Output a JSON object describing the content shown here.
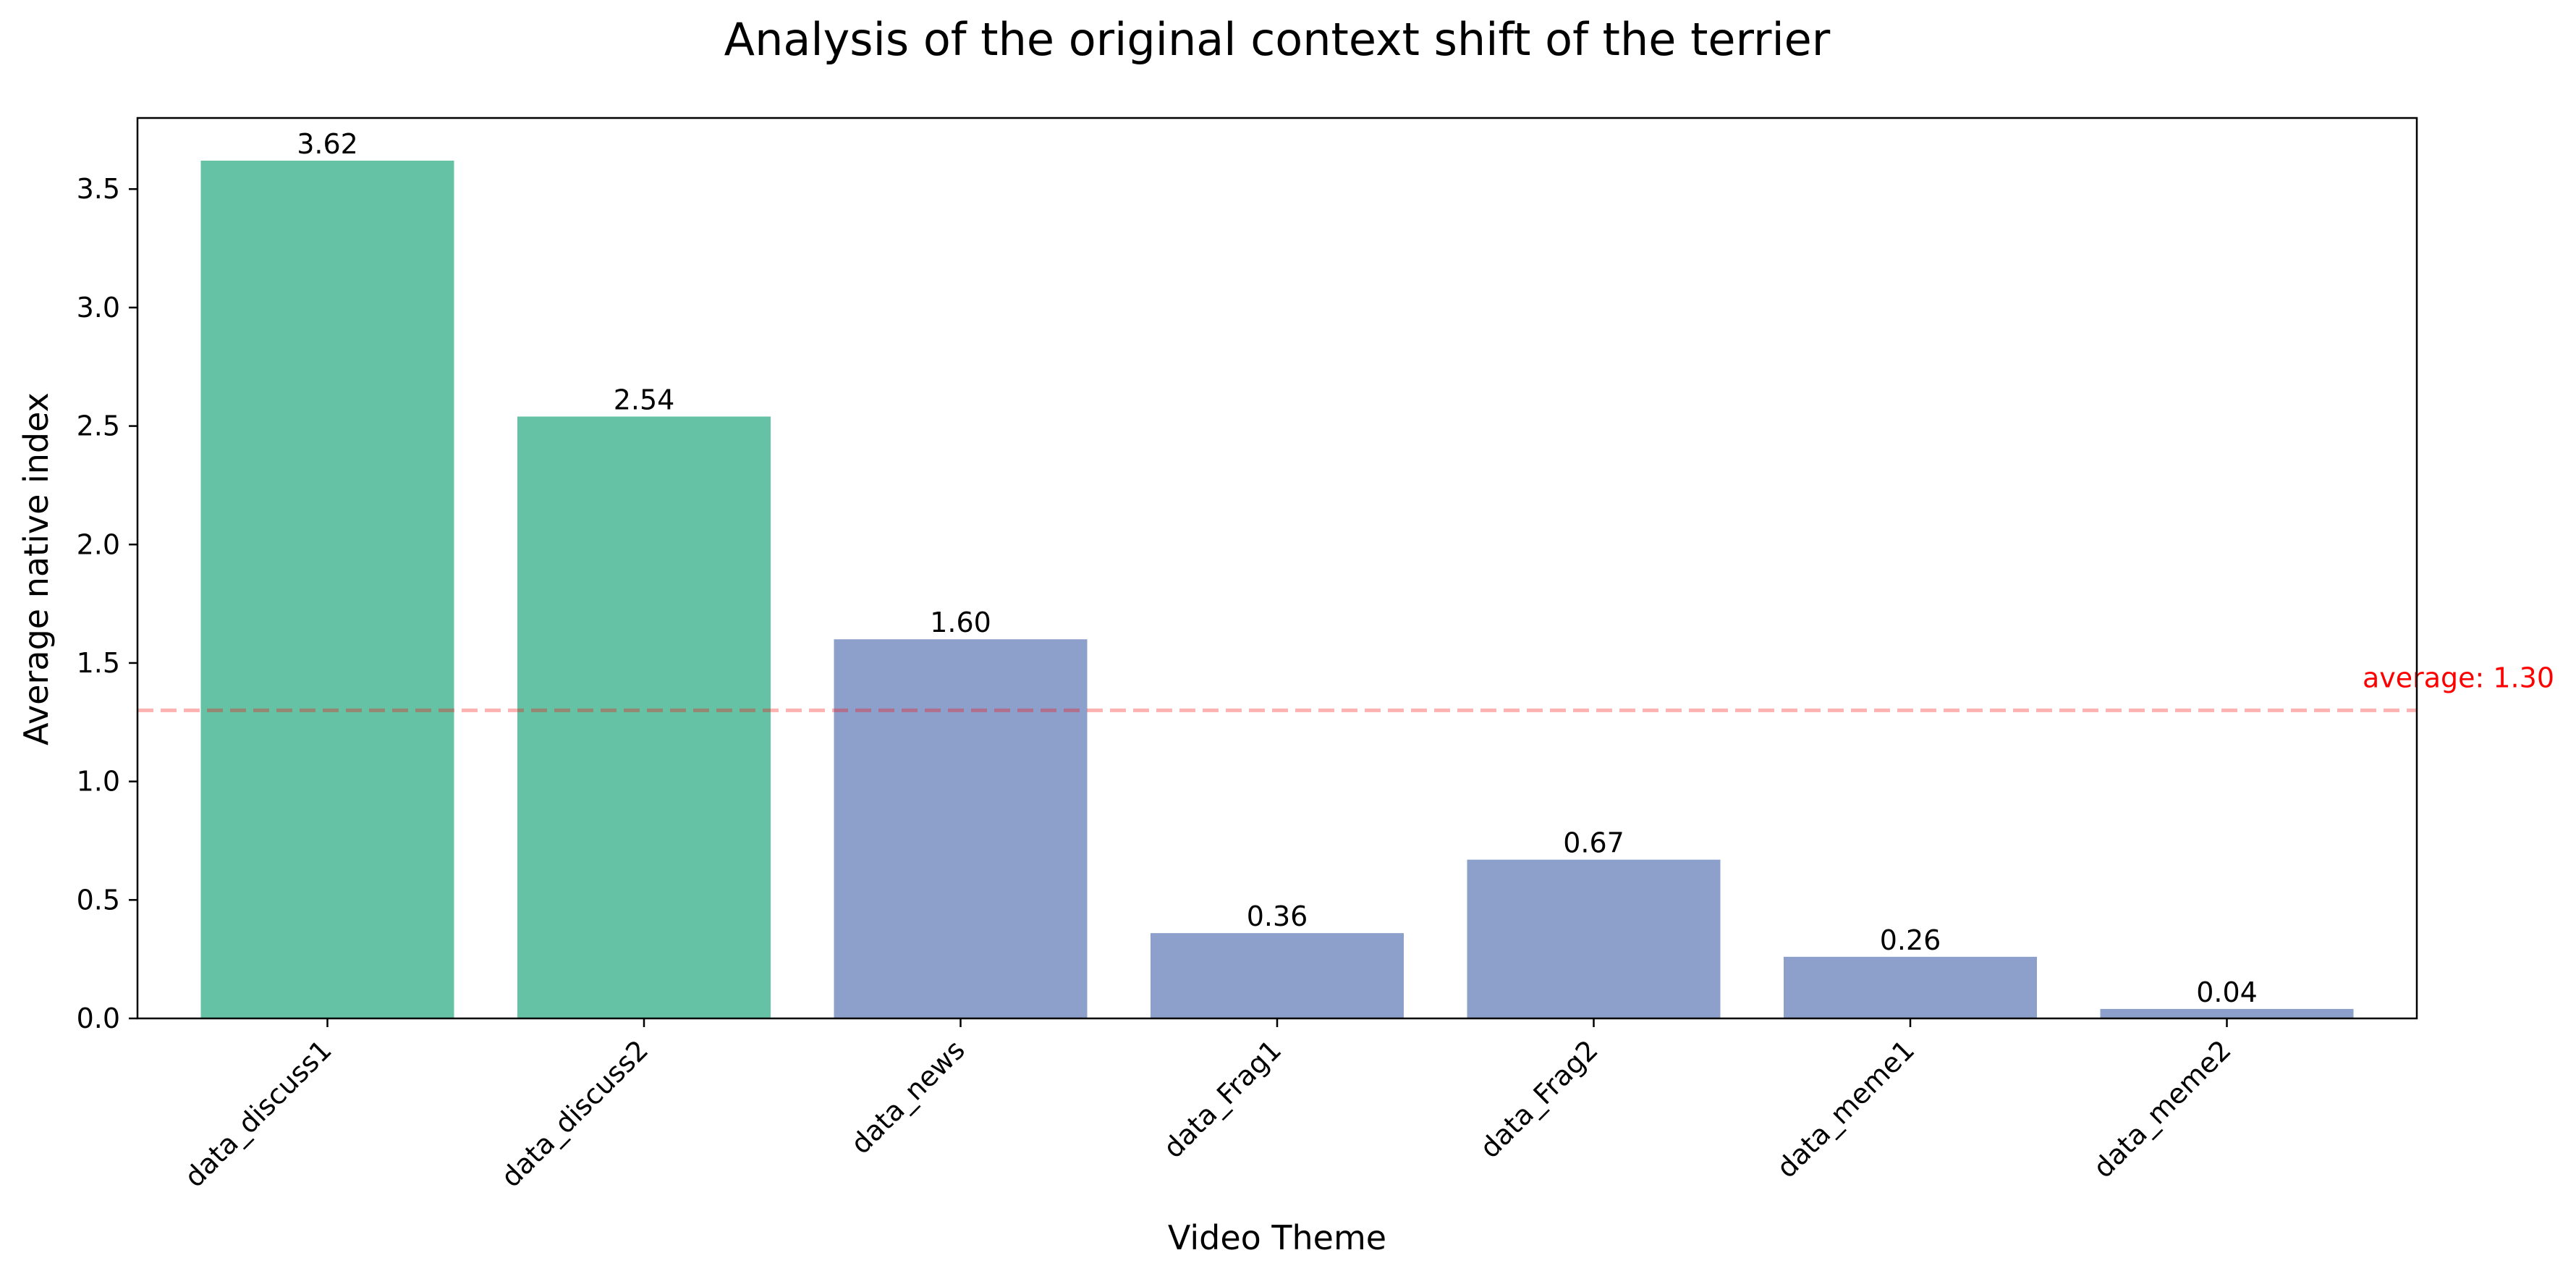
{
  "chart_data": {
    "type": "bar",
    "title": "Analysis of the original context shift of the terrier",
    "xlabel": "Video Theme",
    "ylabel": "Average native index",
    "categories": [
      "data_discuss1",
      "data_discuss2",
      "data_news",
      "data_Frag1",
      "data_Frag2",
      "data_meme1",
      "data_meme2"
    ],
    "values": [
      3.62,
      2.54,
      1.6,
      0.36,
      0.67,
      0.26,
      0.04
    ],
    "value_labels": [
      "3.62",
      "2.54",
      "1.60",
      "0.36",
      "0.67",
      "0.26",
      "0.04"
    ],
    "bar_colors": [
      "#66c2a5",
      "#66c2a5",
      "#8da0cb",
      "#8da0cb",
      "#8da0cb",
      "#8da0cb",
      "#8da0cb"
    ],
    "ylim": [
      0,
      3.8
    ],
    "yticks": [
      0.0,
      0.5,
      1.0,
      1.5,
      2.0,
      2.5,
      3.0,
      3.5
    ],
    "ytick_labels": [
      "0.0",
      "0.5",
      "1.0",
      "1.5",
      "2.0",
      "2.5",
      "3.0",
      "3.5"
    ],
    "reference_line": {
      "value": 1.3,
      "label": "average: 1.30",
      "color": "#ff0000",
      "style": "dashed"
    },
    "grid": false,
    "legend": "none"
  }
}
